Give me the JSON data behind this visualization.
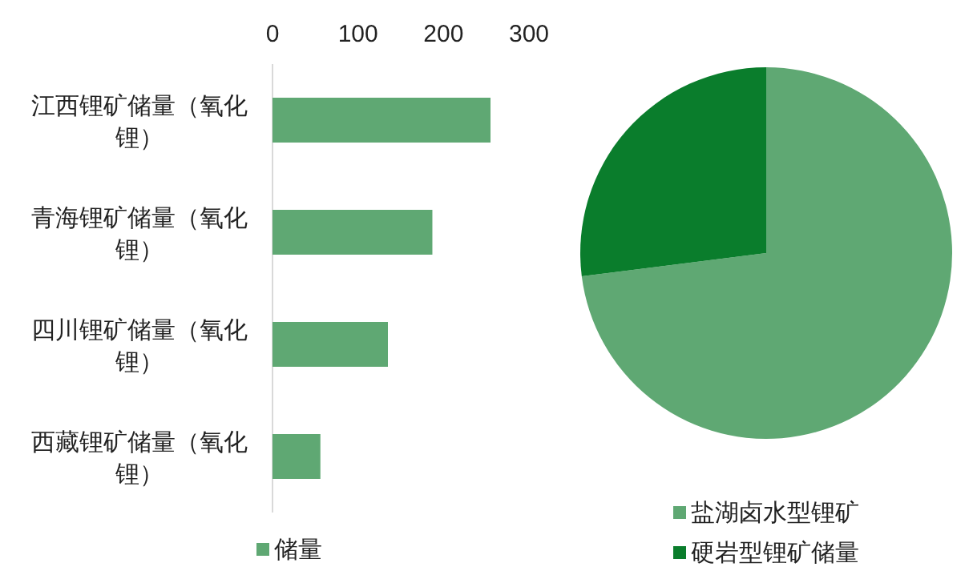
{
  "chart_data": [
    {
      "type": "bar",
      "orientation": "horizontal",
      "categories": [
        "江西锂矿储量（氧化锂）",
        "青海锂矿储量（氧化锂）",
        "四川锂矿储量（氧化锂）",
        "西藏锂矿储量（氧化锂）"
      ],
      "series": [
        {
          "name": "储量",
          "color": "#5fa873",
          "values": [
            255,
            187,
            135,
            56
          ]
        }
      ],
      "xlim": [
        0,
        300
      ],
      "xticks": [
        0,
        100,
        200,
        300
      ],
      "grid": false,
      "legend": "bottom"
    },
    {
      "type": "pie",
      "categories": [
        "盐湖卤水型锂矿",
        "硬岩型锂矿储量"
      ],
      "values": [
        73,
        27
      ],
      "colors": [
        "#5fa873",
        "#0a7d2c"
      ],
      "legend": "bottom"
    }
  ]
}
